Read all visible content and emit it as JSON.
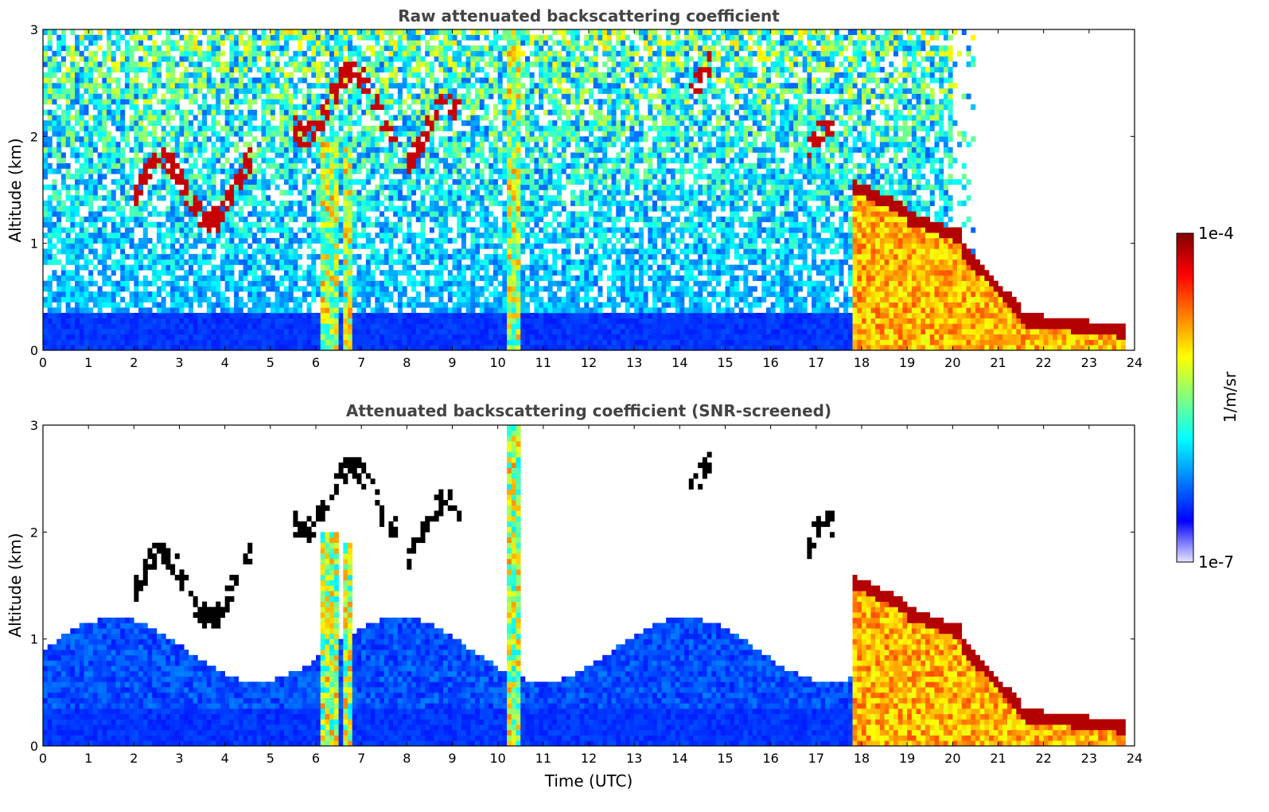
{
  "chart_data": [
    {
      "type": "heatmap",
      "title": "Raw attenuated backscattering coefficient",
      "xlabel": "",
      "ylabel": "Altitude (km)",
      "xlim": [
        0,
        24
      ],
      "ylim": [
        0,
        3
      ],
      "xticks": [
        "0",
        "1",
        "2",
        "3",
        "4",
        "5",
        "6",
        "7",
        "8",
        "9",
        "10",
        "11",
        "12",
        "13",
        "14",
        "15",
        "16",
        "17",
        "18",
        "19",
        "20",
        "21",
        "22",
        "23",
        "24"
      ],
      "yticks": [
        "0",
        "1",
        "2",
        "3"
      ],
      "grid": false,
      "features": [
        {
          "kind": "boundary_layer",
          "from_h": 0,
          "to_h": 17.8,
          "top_km": 0.35
        },
        {
          "kind": "plume",
          "center_h": 6.3,
          "width_h": 0.4,
          "top_km": 2.0
        },
        {
          "kind": "plume",
          "center_h": 6.7,
          "width_h": 0.15,
          "top_km": 1.9
        },
        {
          "kind": "plume",
          "center_h": 10.3,
          "width_h": 0.3,
          "top_km": 3.0
        },
        {
          "kind": "precip_cloud",
          "from_h": 17.8,
          "to_h": 23.8,
          "top_km": 0.25
        },
        {
          "kind": "thin_cloud",
          "from_h": 2.0,
          "to_h": 4.6,
          "alt_km": 1.5
        },
        {
          "kind": "thin_cloud",
          "from_h": 5.5,
          "to_h": 7.8,
          "alt_km": 2.3
        },
        {
          "kind": "thin_cloud",
          "from_h": 8.0,
          "to_h": 9.2,
          "alt_km": 2.0
        },
        {
          "kind": "thin_cloud",
          "from_h": 14.2,
          "to_h": 14.7,
          "alt_km": 2.7
        },
        {
          "kind": "thin_cloud",
          "from_h": 16.8,
          "to_h": 17.4,
          "alt_km": 1.8
        }
      ]
    },
    {
      "type": "heatmap",
      "title": "Attenuated backscattering coefficient (SNR-screened)",
      "xlabel": "Time (UTC)",
      "ylabel": "Altitude (km)",
      "xlim": [
        0,
        24
      ],
      "ylim": [
        0,
        3
      ],
      "xticks": [
        "0",
        "1",
        "2",
        "3",
        "4",
        "5",
        "6",
        "7",
        "8",
        "9",
        "10",
        "11",
        "12",
        "13",
        "14",
        "15",
        "16",
        "17",
        "18",
        "19",
        "20",
        "21",
        "22",
        "23",
        "24"
      ],
      "yticks": [
        "0",
        "1",
        "2",
        "3"
      ],
      "grid": false
    }
  ],
  "colorbar": {
    "label": "1/m/sr",
    "max_label": "1e-4",
    "min_label": "1e-7",
    "scale": "log",
    "range": [
      1e-07,
      0.0001
    ],
    "colormap": [
      "#e6e6ff",
      "#0000ff",
      "#0080ff",
      "#00ffff",
      "#80ff80",
      "#ffff00",
      "#ff8000",
      "#ff0000",
      "#800000"
    ]
  },
  "colors": {
    "title_text": "#444444",
    "axis": "#000000"
  }
}
